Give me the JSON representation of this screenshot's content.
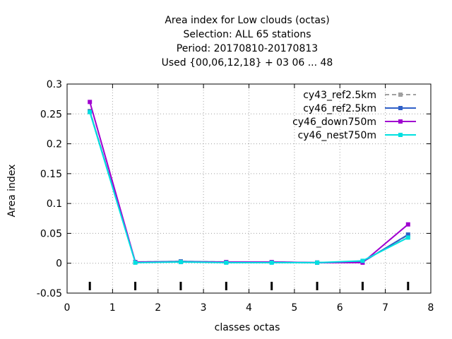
{
  "chart_data": {
    "type": "line",
    "title": [
      "Area index  for Low clouds (octas)",
      "Selection: ALL     65 stations",
      "Period: 20170810-20170813",
      "Used {00,06,12,18} + 03 06 ... 48"
    ],
    "xlabel": "classes octas",
    "ylabel": "Area index",
    "xlim": [
      0,
      8
    ],
    "ylim": [
      -0.05,
      0.3
    ],
    "xticks": [
      0,
      1,
      2,
      3,
      4,
      5,
      6,
      7,
      8
    ],
    "xtick_labels": [
      "0",
      "1",
      "2",
      "3",
      "4",
      "5",
      "6",
      "7",
      "8"
    ],
    "yticks": [
      -0.05,
      0,
      0.05,
      0.1,
      0.15,
      0.2,
      0.25,
      0.3
    ],
    "ytick_labels": [
      "-0.05",
      "0",
      "0.05",
      "0.1",
      "0.15",
      "0.2",
      "0.25",
      "0.3"
    ],
    "grid": true,
    "legend_position": "top-right",
    "x": [
      0.5,
      1.5,
      2.5,
      3.5,
      4.5,
      5.5,
      6.5,
      7.5
    ],
    "series": [
      {
        "name": "cy43_ref2.5km",
        "color": "#a0a0a0",
        "dashed": true,
        "values": [
          0.255,
          0.002,
          0.003,
          0.002,
          0.002,
          0.001,
          0.003,
          0.047
        ]
      },
      {
        "name": "cy46_ref2.5km",
        "color": "#3060c8",
        "dashed": false,
        "values": [
          0.254,
          0.002,
          0.003,
          0.002,
          0.002,
          0.001,
          0.002,
          0.048
        ]
      },
      {
        "name": "cy46_down750m",
        "color": "#a000d0",
        "dashed": false,
        "values": [
          0.27,
          0.002,
          0.002,
          0.002,
          0.002,
          0.001,
          0.001,
          0.065
        ]
      },
      {
        "name": "cy46_nest750m",
        "color": "#00e0e0",
        "dashed": false,
        "values": [
          0.253,
          0.001,
          0.002,
          0.001,
          0.001,
          0.001,
          0.004,
          0.043
        ]
      }
    ]
  }
}
